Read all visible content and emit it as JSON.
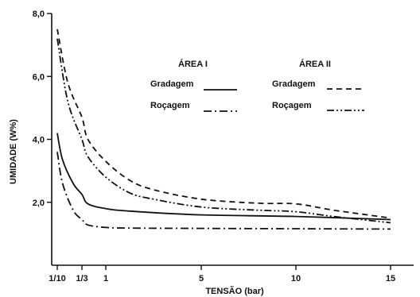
{
  "chart_data": {
    "type": "line",
    "title": "",
    "xlabel": "TENSÃO (bar)",
    "ylabel": "UMIDADE (W%)",
    "xlim": [
      0,
      16
    ],
    "ylim": [
      0,
      8
    ],
    "x_ticks": [
      {
        "value": 0.1,
        "label": "1/10"
      },
      {
        "value": 0.333,
        "label": "1/3"
      },
      {
        "value": 1,
        "label": "1"
      },
      {
        "value": 5,
        "label": "5"
      },
      {
        "value": 10,
        "label": "10"
      },
      {
        "value": 15,
        "label": "15"
      }
    ],
    "y_ticks": [
      {
        "value": 2,
        "label": "2,0"
      },
      {
        "value": 4,
        "label": "4,0"
      },
      {
        "value": 6,
        "label": "6,0"
      },
      {
        "value": 8,
        "label": "8,0"
      }
    ],
    "grid": false,
    "legend_groups": [
      {
        "title": "ÁREA I",
        "entries": [
          "Gradagem",
          "Roçagem"
        ]
      },
      {
        "title": "ÁREA II",
        "entries": [
          "Gradagem",
          "Roçagem"
        ]
      }
    ],
    "series": [
      {
        "name": "Gradagem",
        "group": "ÁREA I",
        "dash": "solid",
        "x": [
          0.1,
          0.15,
          0.25,
          0.333,
          0.5,
          1,
          2,
          5,
          10,
          15
        ],
        "y": [
          4.2,
          3.35,
          2.6,
          2.25,
          1.95,
          1.8,
          1.72,
          1.6,
          1.55,
          1.45
        ]
      },
      {
        "name": "Roçagem",
        "group": "ÁREA I",
        "dash": "dashdot",
        "x": [
          0.1,
          0.15,
          0.25,
          0.333,
          0.5,
          1,
          2,
          5,
          10,
          15
        ],
        "y": [
          3.6,
          2.6,
          1.75,
          1.45,
          1.28,
          1.2,
          1.18,
          1.17,
          1.16,
          1.15
        ]
      },
      {
        "name": "Gradagem",
        "group": "ÁREA II",
        "dash": "dashed",
        "x": [
          0.1,
          0.2,
          0.333,
          0.5,
          1,
          2,
          3,
          5,
          8,
          10,
          12,
          15
        ],
        "y": [
          7.5,
          5.8,
          4.7,
          4.0,
          3.3,
          2.7,
          2.4,
          2.1,
          1.97,
          1.95,
          1.75,
          1.5
        ]
      },
      {
        "name": "Roçagem",
        "group": "ÁREA II",
        "dash": "dashdotdot",
        "x": [
          0.1,
          0.2,
          0.333,
          0.5,
          1,
          2,
          3,
          5,
          8,
          10,
          12,
          15
        ],
        "y": [
          7.2,
          5.2,
          4.0,
          3.45,
          2.8,
          2.3,
          2.1,
          1.85,
          1.75,
          1.7,
          1.55,
          1.35
        ]
      }
    ]
  }
}
